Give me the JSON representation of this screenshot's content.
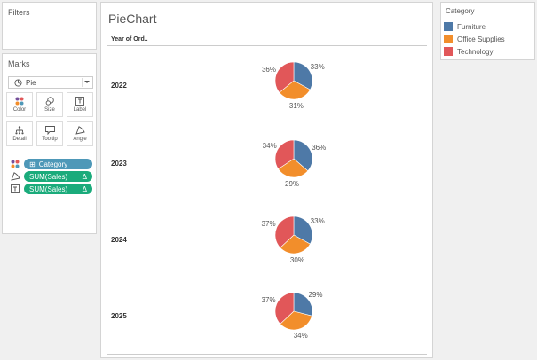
{
  "filters": {
    "title": "Filters"
  },
  "marks": {
    "title": "Marks",
    "mark_type": "Pie",
    "buttons": [
      {
        "label": "Color",
        "icon": "color-dots-icon"
      },
      {
        "label": "Size",
        "icon": "size-icon"
      },
      {
        "label": "Label",
        "icon": "label-icon"
      },
      {
        "label": "Detail",
        "icon": "detail-icon"
      },
      {
        "label": "Tooltip",
        "icon": "tooltip-icon"
      },
      {
        "label": "Angle",
        "icon": "angle-icon"
      }
    ],
    "pills": [
      {
        "label": "Category",
        "kind": "dimension",
        "shelf": "color",
        "prefix": "⊞"
      },
      {
        "label": "SUM(Sales)",
        "kind": "measure",
        "shelf": "angle",
        "suffix": "Δ"
      },
      {
        "label": "SUM(Sales)",
        "kind": "measure",
        "shelf": "label",
        "suffix": "Δ"
      }
    ]
  },
  "view": {
    "title": "PieChart",
    "column_header": "Year of Ord.."
  },
  "legend": {
    "title": "Category",
    "items": [
      {
        "label": "Furniture",
        "color": "#4e79a7"
      },
      {
        "label": "Office Supplies",
        "color": "#f28e2b"
      },
      {
        "label": "Technology",
        "color": "#e15759"
      }
    ]
  },
  "colors": {
    "furniture": "#4e79a7",
    "office_supplies": "#f28e2b",
    "technology": "#e15759",
    "dimension_pill": "#4e98b8",
    "measure_pill": "#1aab7b"
  },
  "chart_data": {
    "type": "pie",
    "title": "PieChart",
    "facet_label": "Year of Ord..",
    "categories": [
      "Furniture",
      "Office Supplies",
      "Technology"
    ],
    "facets": [
      {
        "year": "2022",
        "values": [
          33,
          31,
          36
        ],
        "labels": [
          "33%",
          "31%",
          "36%"
        ]
      },
      {
        "year": "2023",
        "values": [
          36,
          29,
          34
        ],
        "labels": [
          "36%",
          "29%",
          "34%"
        ]
      },
      {
        "year": "2024",
        "values": [
          33,
          30,
          37
        ],
        "labels": [
          "33%",
          "30%",
          "37%"
        ]
      },
      {
        "year": "2025",
        "values": [
          29,
          34,
          37
        ],
        "labels": [
          "29%",
          "34%",
          "37%"
        ]
      }
    ],
    "legend_position": "right",
    "unit": "percent of total sales"
  }
}
